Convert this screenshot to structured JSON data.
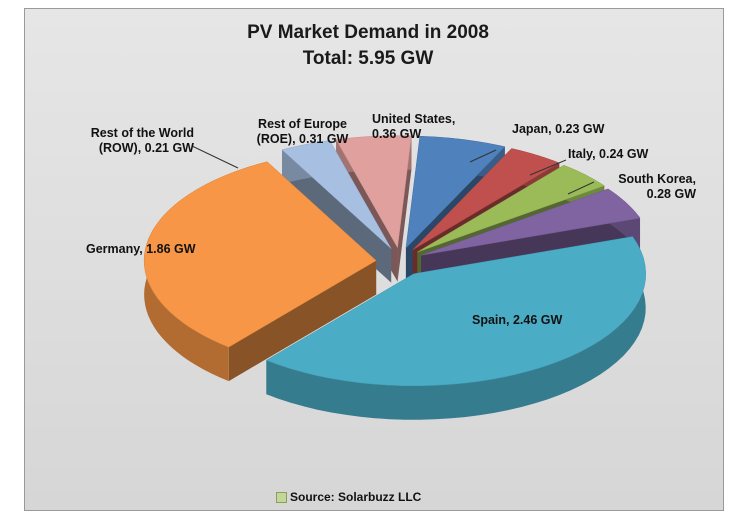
{
  "chart_data": {
    "type": "pie",
    "title": "PV Market Demand in 2008",
    "subtitle": "Total: 5.95 GW",
    "values": [
      0.36,
      0.23,
      0.24,
      0.28,
      2.46,
      1.86,
      0.21,
      0.31
    ],
    "value_labels": [
      "United States, 0.36 GW",
      "Japan, 0.23 GW",
      "Italy, 0.24 GW",
      "South Korea, 0.28 GW",
      "Spain, 2.46 GW",
      "Germany, 1.86 GW",
      "Rest of the World (ROW), 0.21 GW",
      "Rest of Europe (ROE), 0.31 GW"
    ],
    "colors": [
      "#4f81bd",
      "#c0504d",
      "#9bbb59",
      "#8064a2",
      "#4bacc6",
      "#f79646",
      "#a7bfe0",
      "#e0a09e"
    ],
    "source": "Source: Solarbuzz LLC"
  }
}
